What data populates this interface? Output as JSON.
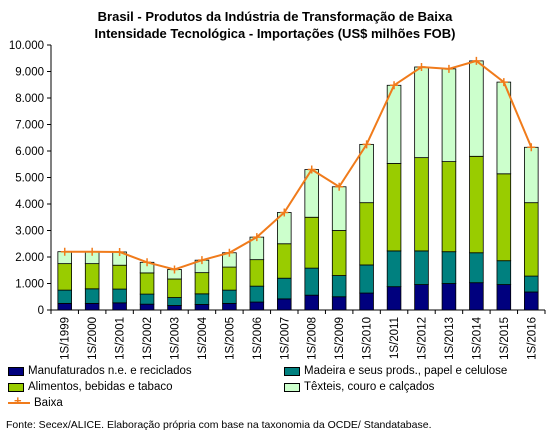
{
  "title_line1": "Brasil - Produtos da Indústria de Transformação de Baixa",
  "title_line2": "Intensidade Tecnológica - Importações (US$ milhões FOB)",
  "source": "Fonte: Secex/ALICE. Elaboração própria com base na taxonomia da OCDE/ Standatabase.",
  "chart_data": {
    "type": "bar",
    "stacked": true,
    "categories": [
      "1S/1999",
      "1S/2000",
      "1S/2001",
      "1S/2002",
      "1S/2003",
      "1S/2004",
      "1S/2005",
      "1S/2006",
      "1S/2007",
      "1S/2008",
      "1S/2009",
      "1S/2010",
      "1S/2011",
      "1S/2012",
      "1S/2013",
      "1S/2014",
      "1S/2015",
      "1S/2016"
    ],
    "ylim": [
      0,
      10000
    ],
    "yticks": [
      "0",
      "1.000",
      "2.000",
      "3.000",
      "4.000",
      "5.000",
      "6.000",
      "7.000",
      "8.000",
      "9.000",
      "10.000"
    ],
    "grid": false,
    "legend_position": "bottom",
    "series": [
      {
        "name": "Manufaturados n.e. e reciclados",
        "color": "#00007e",
        "values": [
          250,
          250,
          270,
          220,
          170,
          210,
          250,
          300,
          420,
          560,
          500,
          640,
          880,
          960,
          1000,
          1030,
          960,
          680
        ]
      },
      {
        "name": "Madeira e seus prods., papel e celulose",
        "color": "#00807f",
        "values": [
          500,
          550,
          520,
          380,
          300,
          400,
          500,
          600,
          780,
          1020,
          800,
          1060,
          1350,
          1270,
          1200,
          1130,
          900,
          600
        ]
      },
      {
        "name": "Alimentos, bebidas e tabaco",
        "color": "#99cc00",
        "values": [
          1000,
          950,
          900,
          800,
          700,
          800,
          870,
          1000,
          1300,
          1920,
          1700,
          2350,
          3300,
          3520,
          3400,
          3640,
          3280,
          2770
        ]
      },
      {
        "name": "Têxteis, couro e calçados",
        "color": "#ccffcc",
        "values": [
          450,
          450,
          500,
          400,
          360,
          470,
          540,
          850,
          1180,
          1800,
          1650,
          2200,
          2950,
          3420,
          3500,
          3600,
          3460,
          2090
        ]
      }
    ],
    "line": {
      "name": "Baixa",
      "color": "#f07b1b",
      "values": [
        2200,
        2200,
        2190,
        1800,
        1530,
        1880,
        2160,
        2750,
        3680,
        5300,
        4650,
        6250,
        8480,
        9170,
        9100,
        9400,
        8600,
        6140
      ]
    }
  }
}
